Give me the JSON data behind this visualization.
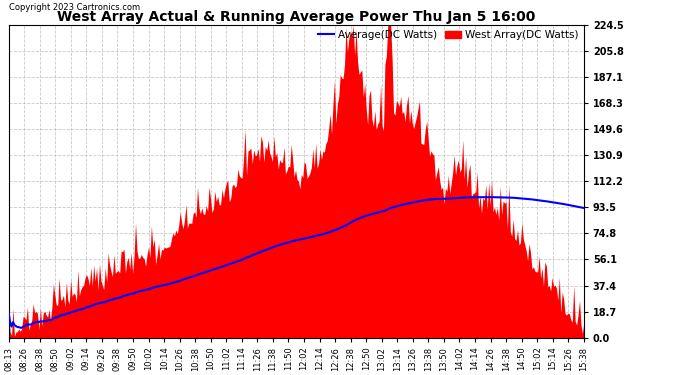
{
  "title": "West Array Actual & Running Average Power Thu Jan 5 16:00",
  "copyright": "Copyright 2023 Cartronics.com",
  "ylabel_right_ticks": [
    0.0,
    18.7,
    37.4,
    56.1,
    74.8,
    93.5,
    112.2,
    130.9,
    149.6,
    168.3,
    187.1,
    205.8,
    224.5
  ],
  "ymax": 224.5,
  "ymin": 0.0,
  "background_color": "#ffffff",
  "grid_color": "#bbbbbb",
  "area_color": "#ff0000",
  "avg_line_color": "#0000ff",
  "title_color": "#000000",
  "copyright_color": "#000000",
  "legend_avg_color": "#0000ff",
  "legend_west_color": "#ff0000",
  "x_labels": [
    "08:13",
    "08:26",
    "08:38",
    "08:50",
    "09:02",
    "09:14",
    "09:26",
    "09:38",
    "09:50",
    "10:02",
    "10:14",
    "10:26",
    "10:38",
    "10:50",
    "11:02",
    "11:14",
    "11:26",
    "11:38",
    "11:50",
    "12:02",
    "12:14",
    "12:26",
    "12:38",
    "12:50",
    "13:02",
    "13:14",
    "13:26",
    "13:38",
    "13:50",
    "14:02",
    "14:14",
    "14:26",
    "14:38",
    "14:50",
    "15:02",
    "15:14",
    "15:26",
    "15:38"
  ]
}
